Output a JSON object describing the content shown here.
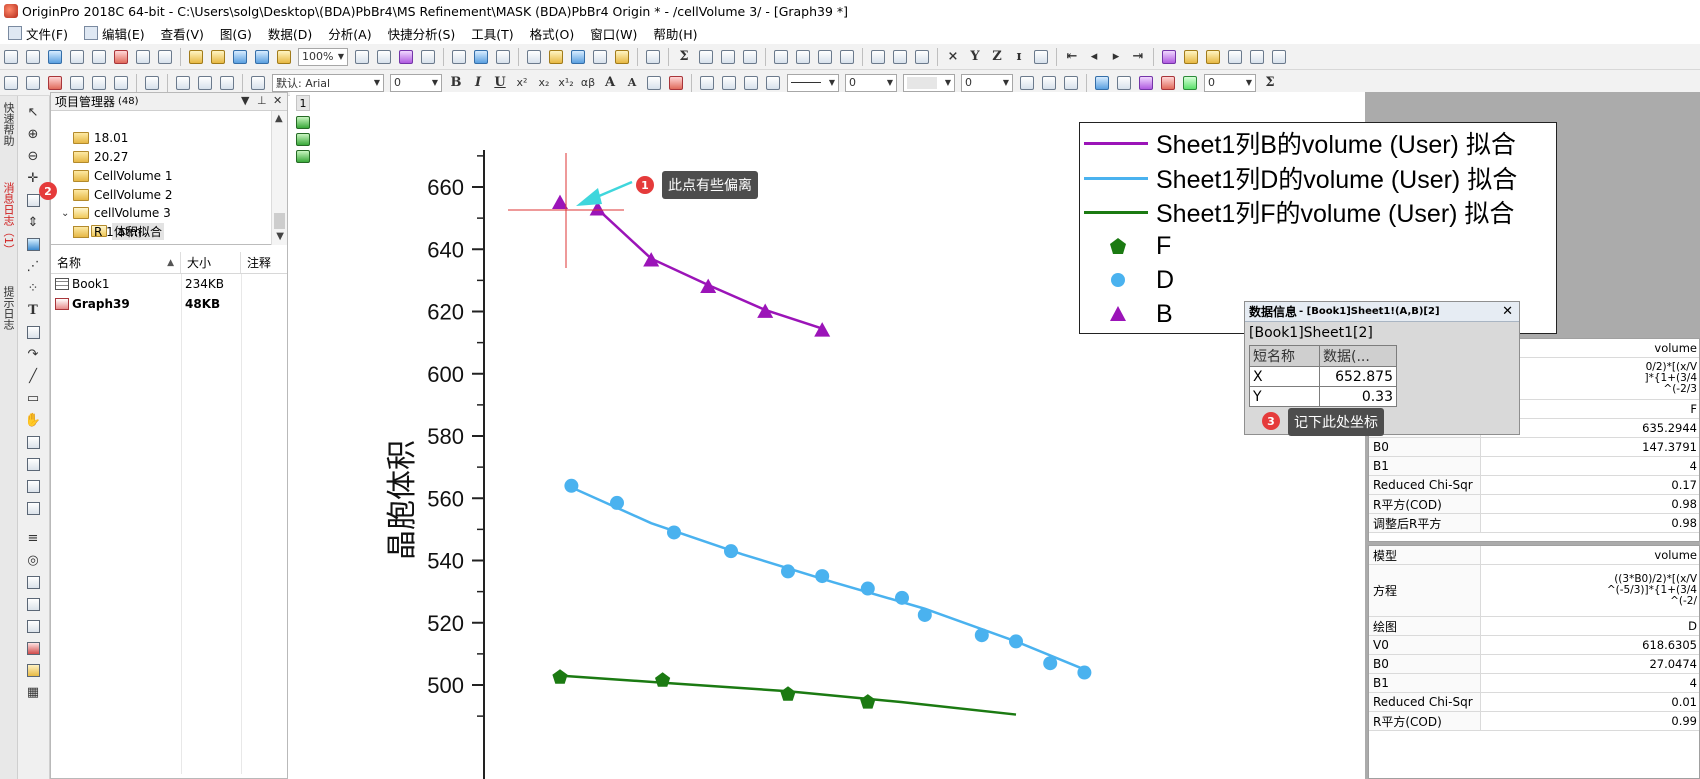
{
  "window": {
    "title": "OriginPro 2018C 64-bit - C:\\Users\\solg\\Desktop\\(BDA)PbBr4\\MS Refinement\\MASK (BDA)PbBr4 Origin * - /cellVolume 3/ - [Graph39 *]"
  },
  "menu": {
    "items": [
      "文件(F)",
      "编辑(E)",
      "查看(V)",
      "图(G)",
      "数据(D)",
      "分析(A)",
      "快捷分析(S)",
      "工具(T)",
      "格式(O)",
      "窗口(W)",
      "帮助(H)"
    ]
  },
  "toolbar": {
    "zoom": "100%",
    "font_name": "默认: Arial",
    "font_size": "0",
    "format_buttons": [
      "B",
      "I",
      "U",
      "x²",
      "x₂",
      "x¹₂",
      "αβ",
      "A",
      "A"
    ],
    "line_width_1": "0",
    "line_width_2": "0",
    "last_combo": "0"
  },
  "side_tabs": {
    "quick_help": "快速帮助",
    "message_log": "消息日志（1）",
    "hint_log": "提示日志"
  },
  "project_manager": {
    "title": "项目管理器",
    "count": "(48)",
    "folders": [
      "18.01",
      "20.27",
      "CellVolume 1",
      "CellVolume 2",
      "cellVolume 3",
      "体积拟合",
      "R 1 atm"
    ],
    "columns": [
      "名称",
      "大小",
      "注释"
    ],
    "rows": [
      {
        "name": "Book1",
        "size": "234KB",
        "comment": ""
      },
      {
        "name": "Graph39",
        "size": "48KB",
        "comment": ""
      }
    ]
  },
  "graph": {
    "layer": "1",
    "ylabel": "晶胞体积",
    "legend": [
      {
        "label": "Sheet1列B的volume (User) 拟合",
        "color": "#9b14b8"
      },
      {
        "label": "Sheet1列D的volume (User) 拟合",
        "color": "#4ab2ef"
      },
      {
        "label": "Sheet1列F的volume (User) 拟合",
        "color": "#1b7a12"
      },
      {
        "label": "F",
        "color": "#1b7a12",
        "symbol": "pentagon"
      },
      {
        "label": "D",
        "color": "#4ab2ef",
        "symbol": "circle"
      },
      {
        "label": "B",
        "color": "#9b14b8",
        "symbol": "triangle"
      }
    ]
  },
  "chart_data": {
    "type": "scatter",
    "ylabel": "晶胞体积",
    "ylim": [
      490,
      667
    ],
    "yticks": [
      500,
      520,
      540,
      560,
      580,
      600,
      620,
      640,
      660
    ],
    "series": [
      {
        "name": "B",
        "color": "#9b14b8",
        "symbol": "triangle",
        "x": [
          0.0,
          0.33,
          0.8,
          1.3,
          1.8,
          2.3
        ],
        "y": [
          655.0,
          652.9,
          636.5,
          628.0,
          620.0,
          614.0
        ]
      },
      {
        "name": "D",
        "color": "#4ab2ef",
        "symbol": "circle",
        "x": [
          0.1,
          0.5,
          1.0,
          1.5,
          2.0,
          2.3,
          2.7,
          3.0,
          3.2,
          3.7,
          4.0,
          4.3,
          4.6
        ],
        "y": [
          564.0,
          558.5,
          549.0,
          543.0,
          536.5,
          535.0,
          531.0,
          528.0,
          522.5,
          516.0,
          514.0,
          507.0,
          504.0
        ]
      },
      {
        "name": "F",
        "color": "#1b7a12",
        "symbol": "pentagon",
        "x": [
          0.0,
          0.9,
          2.0,
          2.7
        ],
        "y": [
          502.5,
          501.5,
          497.0,
          494.5
        ]
      }
    ],
    "fits": [
      {
        "name": "Sheet1列B的volume (User) 拟合",
        "color": "#9b14b8",
        "x": [
          0.33,
          0.8,
          1.3,
          1.8,
          2.3
        ],
        "y": [
          652.9,
          637.0,
          628.5,
          620.5,
          614.5
        ]
      },
      {
        "name": "Sheet1列D的volume (User) 拟合",
        "color": "#4ab2ef",
        "x": [
          0.1,
          0.8,
          1.6,
          2.4,
          3.2,
          4.0,
          4.6
        ],
        "y": [
          563.5,
          552.0,
          542.0,
          533.0,
          524.5,
          514.0,
          505.0
        ]
      },
      {
        "name": "Sheet1列F的volume (User) 拟合",
        "color": "#1b7a12",
        "x": [
          0.0,
          1.0,
          2.0,
          3.0,
          4.0
        ],
        "y": [
          503.0,
          500.5,
          498.0,
          494.5,
          490.5
        ]
      }
    ]
  },
  "data_info": {
    "title": "数据信息",
    "subtitle": "- [Book1]Sheet1!(A,B)[2]",
    "ref": "[Book1]Sheet1[2]",
    "headers": [
      "短名称",
      "数据(..."
    ],
    "x_label": "X",
    "x_value": "652.875",
    "y_label": "Y",
    "y_value": "0.33"
  },
  "annotations": {
    "a1_num": "1",
    "a1_text": "此点有些偏离",
    "a2_num": "2",
    "a3_num": "3",
    "a3_text": "记下此处坐标"
  },
  "report1": {
    "header": "volume",
    "eq_line1": "0/2)*[(x/V",
    "eq_line2": "]*{1+(3/4",
    "eq_line3": "^(-2/3",
    "plot_val": "F",
    "rows": [
      {
        "k": "V0",
        "v": "635.2944"
      },
      {
        "k": "B0",
        "v": "147.3791"
      },
      {
        "k": "B1",
        "v": "4"
      },
      {
        "k": "Reduced Chi-Sqr",
        "v": "0.17"
      },
      {
        "k": "R平方(COD)",
        "v": "0.98"
      },
      {
        "k": "调整后R平方",
        "v": "0.98"
      }
    ]
  },
  "report2": {
    "model_k": "模型",
    "model_v": "volume",
    "eq_k": "方程",
    "eq_line1": "((3*B0)/2)*[(x/V",
    "eq_line2": "^(-5/3)]*{1+(3/4",
    "eq_line3": "^(-2/",
    "plot_k": "绘图",
    "plot_v": "D",
    "rows": [
      {
        "k": "V0",
        "v": "618.6305"
      },
      {
        "k": "B0",
        "v": "27.0474"
      },
      {
        "k": "B1",
        "v": "4"
      },
      {
        "k": "Reduced Chi-Sqr",
        "v": "0.01"
      },
      {
        "k": "R平方(COD)",
        "v": "0.99"
      }
    ]
  }
}
